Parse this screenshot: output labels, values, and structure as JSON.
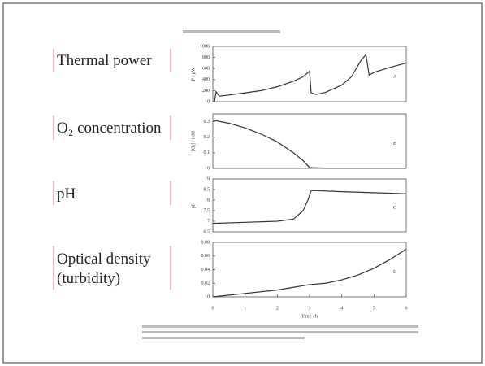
{
  "labels": [
    "Thermal power",
    "O₂ concentration",
    "pH",
    "Optical density",
    "(turbidity)"
  ],
  "chart_data": [
    {
      "type": "line",
      "ylabel": "P / µW",
      "annotation": "A",
      "x": [
        0.05,
        0.1,
        0.2,
        0.5,
        1,
        1.5,
        2,
        2.5,
        2.8,
        3,
        3.05,
        3.2,
        3.5,
        4,
        4.3,
        4.6,
        4.75,
        4.85,
        5,
        5.5,
        6
      ],
      "values": [
        0,
        180,
        100,
        120,
        160,
        200,
        270,
        370,
        450,
        550,
        160,
        130,
        170,
        300,
        450,
        750,
        850,
        480,
        530,
        620,
        700
      ],
      "xlim": [
        0,
        6
      ],
      "ylim": [
        0,
        1000
      ],
      "yticks": [
        0,
        200,
        400,
        600,
        800,
        1000
      ]
    },
    {
      "type": "line",
      "ylabel": "[O₂] / mM",
      "annotation": "B",
      "x": [
        0,
        0.5,
        1,
        1.5,
        2,
        2.5,
        2.8,
        3,
        3.5,
        4,
        5,
        6
      ],
      "values": [
        0.31,
        0.29,
        0.26,
        0.22,
        0.17,
        0.1,
        0.05,
        0.005,
        0.002,
        0.002,
        0.002,
        0.002
      ],
      "xlim": [
        0,
        6
      ],
      "ylim": [
        0,
        0.35
      ],
      "yticks": [
        0,
        0.1,
        0.2,
        0.3
      ]
    },
    {
      "type": "line",
      "ylabel": "pH",
      "annotation": "C",
      "x": [
        0,
        1,
        2,
        2.5,
        2.8,
        2.95,
        3.05,
        3.2,
        4,
        5,
        6
      ],
      "values": [
        6.9,
        6.95,
        7.0,
        7.1,
        7.5,
        8.0,
        8.45,
        8.45,
        8.4,
        8.35,
        8.3
      ],
      "xlim": [
        0,
        6
      ],
      "ylim": [
        6.5,
        9
      ],
      "yticks": [
        6.5,
        7,
        7.5,
        8,
        8.5,
        9
      ]
    },
    {
      "type": "line",
      "annotation": "D",
      "xlabel": "Time / h",
      "x": [
        0,
        1,
        2,
        2.5,
        3,
        3.5,
        4,
        4.5,
        5,
        5.5,
        6
      ],
      "values": [
        0,
        0.005,
        0.01,
        0.014,
        0.018,
        0.02,
        0.025,
        0.032,
        0.042,
        0.055,
        0.07
      ],
      "xlim": [
        0,
        6
      ],
      "ylim": [
        0,
        0.08
      ],
      "yticks": [
        0,
        0.02,
        0.04,
        0.06,
        0.08
      ],
      "xticks": [
        0,
        1,
        2,
        3,
        4,
        5,
        6
      ]
    }
  ]
}
